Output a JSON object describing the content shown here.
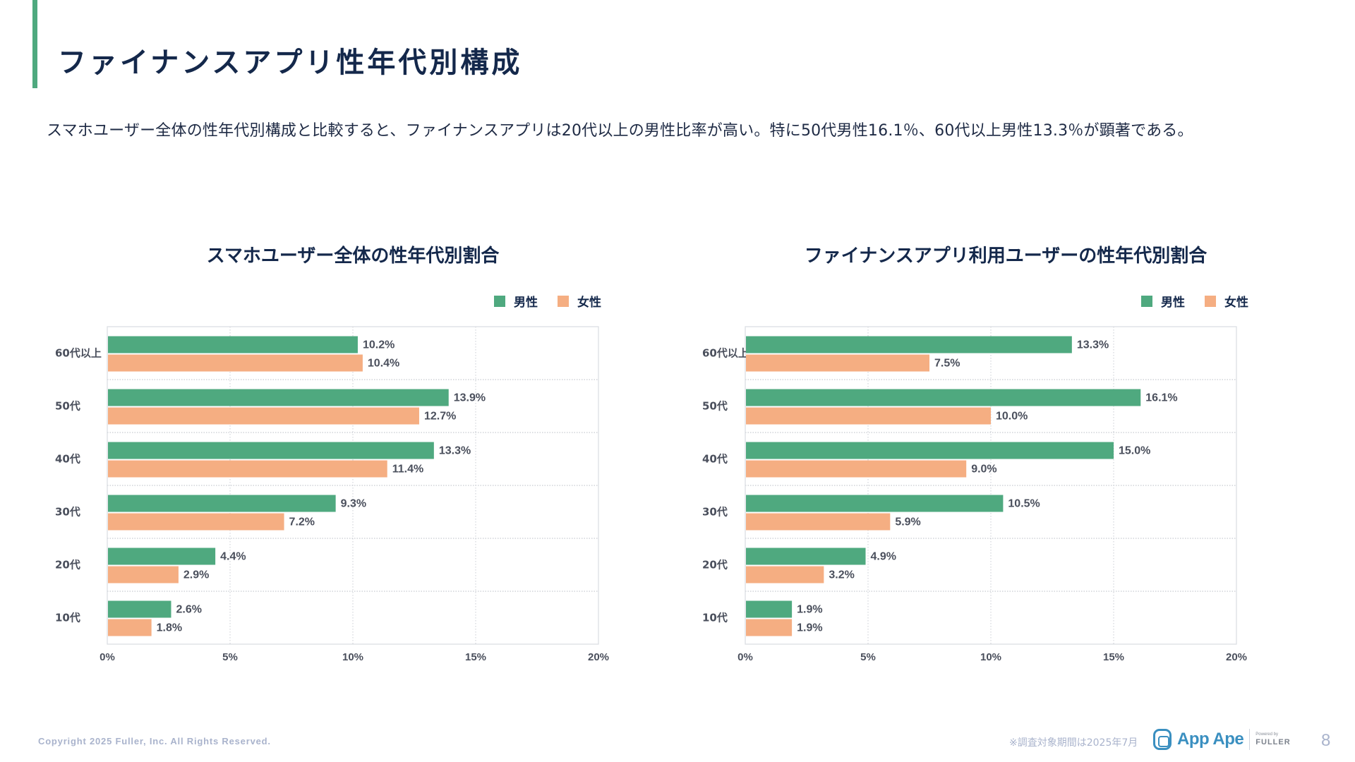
{
  "page": {
    "title": "ファイナンスアプリ性年代別構成",
    "summary": "スマホユーザー全体の性年代別構成と比較すると、ファイナンスアプリは20代以上の男性比率が高い。特に50代男性16.1％、60代以上男性13.3％が顕著である。",
    "accent_color": "#4fa97f",
    "footer": {
      "copyright": "Copyright 2025 Fuller, Inc. All Rights Reserved.",
      "note": "※調査対象期間は2025年7月",
      "logo_text": "App Ape",
      "powered_by": "Powered by",
      "fuller": "FULLER",
      "page_number": "8"
    }
  },
  "legend": {
    "male": "男性",
    "female": "女性",
    "male_color": "#4fa97f",
    "female_color": "#f5ae82"
  },
  "chart_data": [
    {
      "type": "bar",
      "orientation": "horizontal",
      "title": "スマホユーザー全体の性年代別割合",
      "categories": [
        "60代以上",
        "50代",
        "40代",
        "30代",
        "20代",
        "10代"
      ],
      "series": [
        {
          "name": "男性",
          "color": "#4fa97f",
          "values": [
            10.2,
            13.9,
            13.3,
            9.3,
            4.4,
            2.6
          ]
        },
        {
          "name": "女性",
          "color": "#f5ae82",
          "values": [
            10.4,
            12.7,
            11.4,
            7.2,
            2.9,
            1.8
          ]
        }
      ],
      "xlim": [
        0,
        20
      ],
      "xticks": [
        "0%",
        "5%",
        "10%",
        "15%",
        "20%"
      ],
      "xtick_values": [
        0,
        5,
        10,
        15,
        20
      ],
      "value_suffix": "%",
      "grid": true,
      "legend_position": "top-right",
      "xlabel": "",
      "ylabel": ""
    },
    {
      "type": "bar",
      "orientation": "horizontal",
      "title": "ファイナンスアプリ利用ユーザーの性年代別割合",
      "categories": [
        "60代以上",
        "50代",
        "40代",
        "30代",
        "20代",
        "10代"
      ],
      "series": [
        {
          "name": "男性",
          "color": "#4fa97f",
          "values": [
            13.3,
            16.1,
            15.0,
            10.5,
            4.9,
            1.9
          ]
        },
        {
          "name": "女性",
          "color": "#f5ae82",
          "values": [
            7.5,
            10.0,
            9.0,
            5.9,
            3.2,
            1.9
          ]
        }
      ],
      "xlim": [
        0,
        20
      ],
      "xticks": [
        "0%",
        "5%",
        "10%",
        "15%",
        "20%"
      ],
      "xtick_values": [
        0,
        5,
        10,
        15,
        20
      ],
      "value_suffix": "%",
      "grid": true,
      "legend_position": "top-right",
      "xlabel": "",
      "ylabel": ""
    }
  ]
}
